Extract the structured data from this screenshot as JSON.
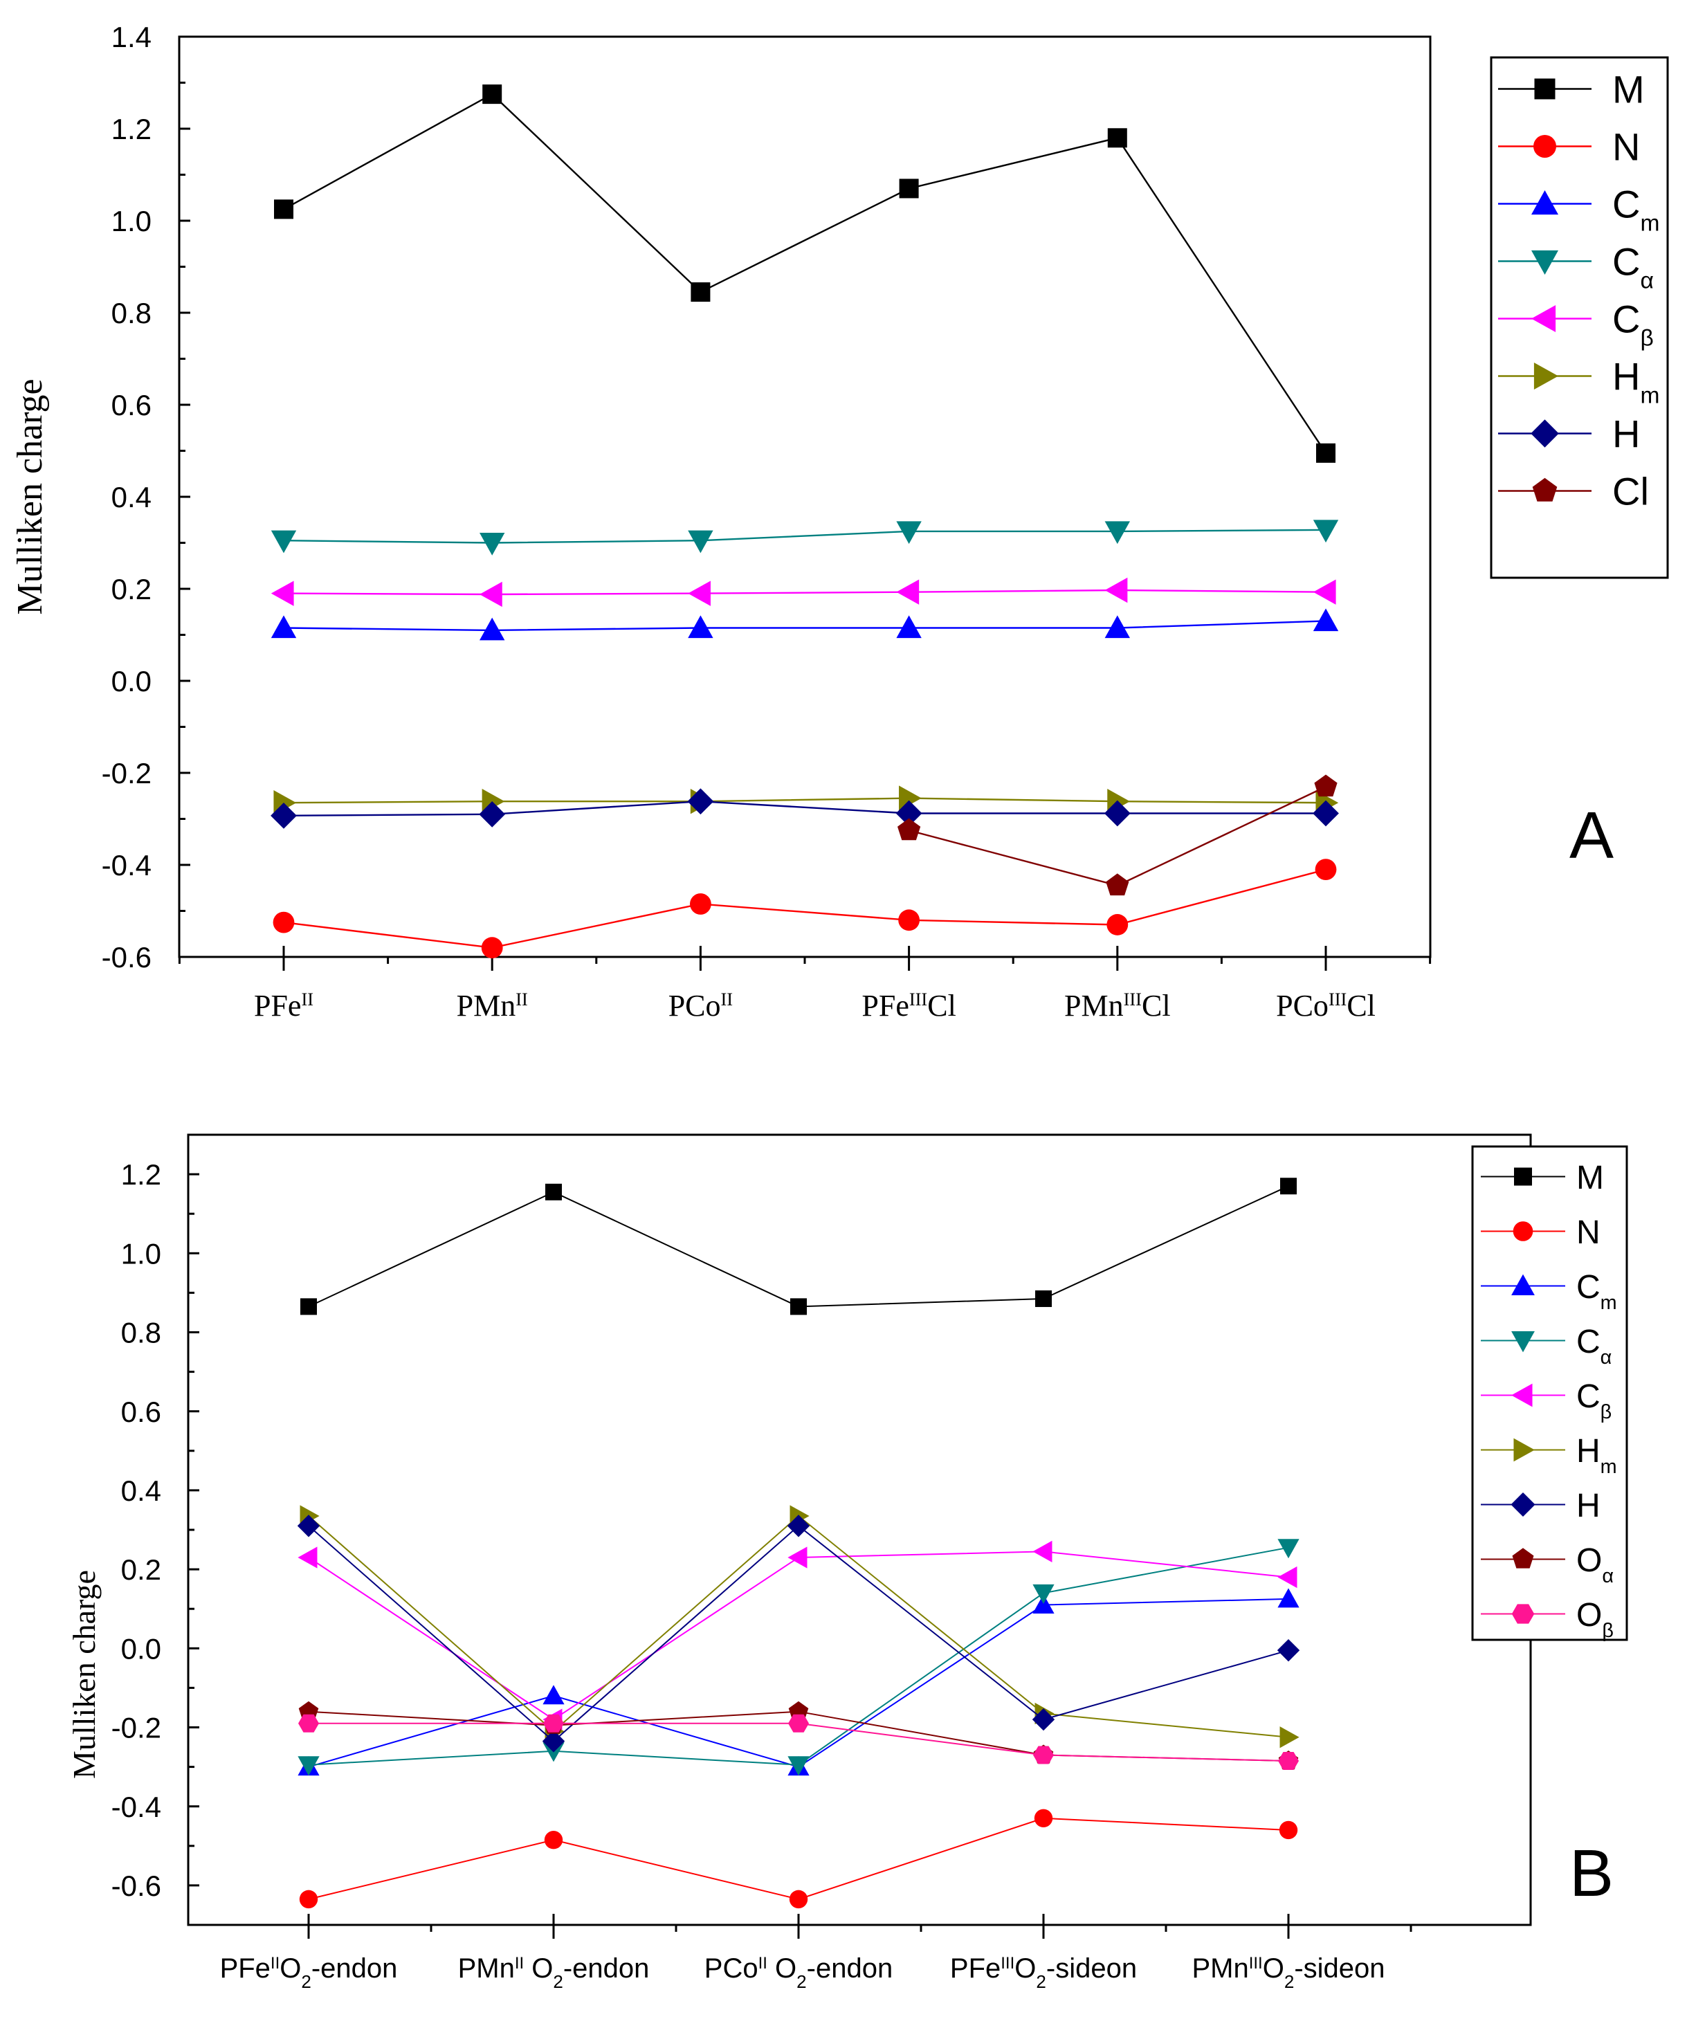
{
  "chart_data": [
    {
      "type": "line",
      "panel_label": "A",
      "ylabel": "Mulliken charge",
      "ylim": [
        -0.6,
        1.4
      ],
      "yticks": [
        -0.6,
        -0.4,
        -0.2,
        0.0,
        0.2,
        0.4,
        0.6,
        0.8,
        1.0,
        1.2,
        1.4
      ],
      "ytick_labels": [
        "-0.6",
        "-0.4",
        "-0.2",
        "0.0",
        "0.2",
        "0.4",
        "0.6",
        "0.8",
        "1.0",
        "1.2",
        "1.4"
      ],
      "categories": [
        {
          "base": "PFe",
          "sup": "II",
          "tail": ""
        },
        {
          "base": "PMn",
          "sup": "II",
          "tail": ""
        },
        {
          "base": "PCo",
          "sup": "II",
          "tail": ""
        },
        {
          "base": "PFe",
          "sup": "III",
          "tail": "Cl"
        },
        {
          "base": "PMn",
          "sup": "III",
          "tail": "Cl"
        },
        {
          "base": "PCo",
          "sup": "III",
          "tail": "Cl"
        }
      ],
      "series": [
        {
          "name": "M",
          "sub": "",
          "color": "#000000",
          "marker": "square",
          "x": [
            0,
            1,
            2,
            3,
            4,
            5
          ],
          "values": [
            1.025,
            1.275,
            0.845,
            1.07,
            1.18,
            0.495
          ]
        },
        {
          "name": "N",
          "sub": "",
          "color": "#ff0000",
          "marker": "circle",
          "x": [
            0,
            1,
            2,
            3,
            4,
            5
          ],
          "values": [
            -0.525,
            -0.58,
            -0.485,
            -0.52,
            -0.53,
            -0.41
          ]
        },
        {
          "name": "C",
          "sub": "m",
          "color": "#0000ff",
          "marker": "triangle-up",
          "x": [
            0,
            1,
            2,
            3,
            4,
            5
          ],
          "values": [
            0.115,
            0.11,
            0.115,
            0.115,
            0.115,
            0.13
          ]
        },
        {
          "name": "C",
          "sub": "α",
          "color": "#008080",
          "marker": "triangle-down",
          "x": [
            0,
            1,
            2,
            3,
            4,
            5
          ],
          "values": [
            0.305,
            0.3,
            0.305,
            0.325,
            0.325,
            0.328
          ]
        },
        {
          "name": "C",
          "sub": "β",
          "color": "#ff00ff",
          "marker": "triangle-left",
          "x": [
            0,
            1,
            2,
            3,
            4,
            5
          ],
          "values": [
            0.19,
            0.188,
            0.19,
            0.193,
            0.197,
            0.193
          ]
        },
        {
          "name": "H",
          "sub": "m",
          "color": "#808000",
          "marker": "triangle-right",
          "x": [
            0,
            1,
            2,
            3,
            4,
            5
          ],
          "values": [
            -0.265,
            -0.262,
            -0.262,
            -0.255,
            -0.262,
            -0.265
          ]
        },
        {
          "name": "H",
          "sub": "",
          "color": "#000080",
          "marker": "diamond",
          "x": [
            0,
            1,
            2,
            3,
            4,
            5
          ],
          "values": [
            -0.293,
            -0.29,
            -0.262,
            -0.288,
            -0.288,
            -0.288
          ]
        },
        {
          "name": "Cl",
          "sub": "",
          "color": "#800000",
          "marker": "pentagon",
          "x": [
            3,
            4,
            5
          ],
          "values": [
            -0.325,
            -0.445,
            -0.23
          ]
        }
      ]
    },
    {
      "type": "line",
      "panel_label": "B",
      "ylabel": "Mulliken charge",
      "ylim": [
        -0.7,
        1.3
      ],
      "yticks": [
        -0.6,
        -0.4,
        -0.2,
        0.0,
        0.2,
        0.4,
        0.6,
        0.8,
        1.0,
        1.2
      ],
      "ytick_labels": [
        "-0.6",
        "-0.4",
        "-0.2",
        "0.0",
        "0.2",
        "0.4",
        "0.6",
        "0.8",
        "1.0",
        "1.2"
      ],
      "categories": [
        {
          "base": "PFe",
          "sup": "II",
          "tail": "O",
          "tsub": "2",
          "rest": "-endon"
        },
        {
          "base": "PMn",
          "sup": "II",
          "tail": " O",
          "tsub": "2",
          "rest": "-endon"
        },
        {
          "base": "PCo",
          "sup": "II",
          "tail": " O",
          "tsub": "2",
          "rest": "-endon"
        },
        {
          "base": "PFe",
          "sup": "III",
          "tail": "O",
          "tsub": "2",
          "rest": "-sideon"
        },
        {
          "base": "PMn",
          "sup": "III",
          "tail": "O",
          "tsub": "2",
          "rest": "-sideon"
        }
      ],
      "series": [
        {
          "name": "M",
          "sub": "",
          "color": "#000000",
          "marker": "square",
          "x": [
            0,
            1,
            2,
            3,
            4
          ],
          "values": [
            0.865,
            1.155,
            0.865,
            0.885,
            1.17
          ]
        },
        {
          "name": "N",
          "sub": "",
          "color": "#ff0000",
          "marker": "circle",
          "x": [
            0,
            1,
            2,
            3,
            4
          ],
          "values": [
            -0.635,
            -0.485,
            -0.635,
            -0.43,
            -0.46
          ]
        },
        {
          "name": "C",
          "sub": "m",
          "color": "#0000ff",
          "marker": "triangle-up",
          "x": [
            0,
            1,
            2,
            3,
            4
          ],
          "values": [
            -0.3,
            -0.12,
            -0.3,
            0.11,
            0.125
          ]
        },
        {
          "name": "C",
          "sub": "α",
          "color": "#008080",
          "marker": "triangle-down",
          "x": [
            0,
            1,
            2,
            3,
            4
          ],
          "values": [
            -0.295,
            -0.26,
            -0.295,
            0.14,
            0.255
          ]
        },
        {
          "name": "C",
          "sub": "β",
          "color": "#ff00ff",
          "marker": "triangle-left",
          "x": [
            0,
            1,
            2,
            3,
            4
          ],
          "values": [
            0.23,
            -0.18,
            0.23,
            0.245,
            0.18
          ]
        },
        {
          "name": "H",
          "sub": "m",
          "color": "#808000",
          "marker": "triangle-right",
          "x": [
            0,
            1,
            2,
            3,
            4
          ],
          "values": [
            0.335,
            -0.21,
            0.335,
            -0.165,
            -0.225
          ]
        },
        {
          "name": "H",
          "sub": "",
          "color": "#000080",
          "marker": "diamond",
          "x": [
            0,
            1,
            2,
            3,
            4
          ],
          "values": [
            0.31,
            -0.235,
            0.31,
            -0.18,
            -0.005
          ]
        },
        {
          "name": "O",
          "sub": "α",
          "color": "#800000",
          "marker": "pentagon",
          "x": [
            0,
            1,
            2,
            3,
            4
          ],
          "values": [
            -0.16,
            -0.195,
            -0.16,
            -0.27,
            -0.285
          ]
        },
        {
          "name": "O",
          "sub": "β",
          "color": "#ff1493",
          "marker": "hexagon",
          "x": [
            0,
            1,
            2,
            3,
            4
          ],
          "values": [
            -0.19,
            -0.19,
            -0.19,
            -0.27,
            -0.285
          ]
        }
      ]
    }
  ]
}
